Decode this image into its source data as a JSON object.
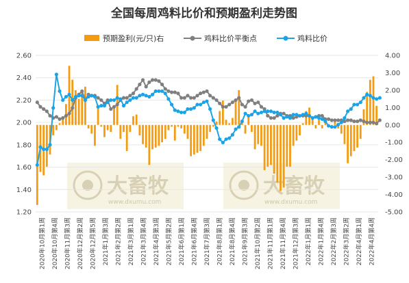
{
  "chart_data": {
    "type": "bar",
    "title": "全国每周鸡料比价和预期盈利走势图",
    "y_left": {
      "min": 1.2,
      "max": 2.6,
      "step": 0.2,
      "ticks": [
        "1.20",
        "1.40",
        "1.60",
        "1.80",
        "2.00",
        "2.20",
        "2.40",
        "2.60"
      ]
    },
    "y_right": {
      "min": -5,
      "max": 4,
      "step": 1,
      "ticks": [
        "-5.00",
        "-4.00",
        "-3.00",
        "-2.00",
        "-1.00",
        "0.00",
        "1.00",
        "2.00",
        "3.00",
        "4.00"
      ]
    },
    "x_tick_labels": [
      "2020年10月第1周",
      "2020年10月第4周",
      "2020年11月第3周",
      "2020年12月第2周",
      "2020年12月第5周",
      "2021年1月第3周",
      "2021年2月第2周",
      "2021年3月第1周",
      "2021年3月第4周",
      "2021年4月第3周",
      "2021年5月第2周",
      "2021年6月第1周",
      "2021年6月第4周",
      "2021年7月第3周",
      "2021年8月第1周",
      "2021年8月第4周",
      "2021年9月第3周",
      "2021年10月第2周",
      "2021年11月第1周",
      "2021年11月第4周",
      "2021年12月第3周",
      "2022年1月第1周",
      "2022年1月第4周",
      "2022年2月第3周",
      "2022年3月第2周",
      "2022年4月第1周",
      "2022年4月第4周"
    ],
    "legend_position": "top",
    "grid": true,
    "series": [
      {
        "name": "预期盈利(元/只)右",
        "type": "bar",
        "axis": "right",
        "color": "#f39c12",
        "values": [
          -4.6,
          -2.7,
          -2.9,
          -2.4,
          -1.7,
          -0.6,
          -0.3,
          0.1,
          0.5,
          1.2,
          3.4,
          2.6,
          2.0,
          1.5,
          2.0,
          2.2,
          -0.2,
          -0.5,
          -1.2,
          1.0,
          -0.1,
          -0.7,
          -0.3,
          -0.4,
          1.1,
          2.3,
          -0.8,
          -0.4,
          -1.5,
          -0.4,
          0.5,
          0.6,
          -0.6,
          -1.1,
          -1.3,
          -2.3,
          -1.4,
          -1.3,
          -1.2,
          -1.0,
          -0.8,
          -0.3,
          -0.1,
          -0.9,
          -0.1,
          -0.2,
          -0.5,
          -0.8,
          -1.8,
          -1.7,
          -1.6,
          -1.5,
          -1.2,
          -0.8,
          -0.4,
          -0.1,
          0.2,
          0.8,
          1.4,
          0.3,
          0.1,
          0.4,
          1.5,
          2.0,
          0.2,
          -0.5,
          0.5,
          -0.4,
          -1.4,
          -1.1,
          -1.2,
          -2.6,
          -2.4,
          -2.3,
          -2.8,
          -3.3,
          -3.8,
          -3.6,
          -2.4,
          -2.4,
          -1.2,
          -0.9,
          -0.6,
          0.1,
          0.8,
          1.0,
          0.5,
          -0.2,
          0.3,
          -0.2,
          0.2,
          0.0,
          -0.1,
          0.2,
          -0.2,
          -0.5,
          -1.1,
          -2.2,
          -1.8,
          -1.5,
          -1.3,
          -0.8,
          0.9,
          1.9,
          2.6,
          2.8,
          1.1
        ]
      },
      {
        "name": "鸡料比价平衡点",
        "type": "line",
        "axis": "left",
        "color": "#7f7f7f",
        "values": [
          2.18,
          2.14,
          2.12,
          2.1,
          2.06,
          2.04,
          2.05,
          2.03,
          2.04,
          2.06,
          2.08,
          2.13,
          2.22,
          2.25,
          2.28,
          2.2,
          2.25,
          2.24,
          2.24,
          2.22,
          2.2,
          2.17,
          2.2,
          2.12,
          2.14,
          2.16,
          2.2,
          2.22,
          2.22,
          2.24,
          2.26,
          2.3,
          2.34,
          2.38,
          2.32,
          2.36,
          2.38,
          2.38,
          2.37,
          2.34,
          2.3,
          2.28,
          2.27,
          2.27,
          2.26,
          2.22,
          2.22,
          2.24,
          2.22,
          2.22,
          2.24,
          2.26,
          2.27,
          2.28,
          2.24,
          2.22,
          2.2,
          2.17,
          2.14,
          2.14,
          2.16,
          2.18,
          2.2,
          2.22,
          2.16,
          2.14,
          2.19,
          2.2,
          2.17,
          2.18,
          2.14,
          2.12,
          2.06,
          2.04,
          2.04,
          2.06,
          2.08,
          2.08,
          2.06,
          2.06,
          2.04,
          2.05,
          2.06,
          2.06,
          2.06,
          2.06,
          2.04,
          2.05,
          2.06,
          2.06,
          2.03,
          2.03,
          2.02,
          2.02,
          2.02,
          2.02,
          2.01,
          2.02,
          2.02,
          2.01,
          2.01,
          2.02,
          2.01,
          2.0,
          2.0,
          2.0,
          1.99,
          2.02
        ]
      },
      {
        "name": "鸡料比价",
        "type": "line",
        "axis": "left",
        "color": "#1aa3e6",
        "values": [
          1.62,
          1.78,
          1.76,
          1.76,
          1.8,
          2.13,
          2.43,
          2.28,
          2.2,
          2.23,
          2.25,
          2.2,
          2.23,
          2.24,
          2.24,
          2.2,
          2.23,
          2.24,
          2.23,
          2.14,
          2.15,
          2.15,
          2.18,
          2.2,
          2.2,
          2.22,
          2.21,
          2.15,
          2.18,
          2.2,
          2.22,
          2.22,
          2.24,
          2.25,
          2.24,
          2.23,
          2.25,
          2.28,
          2.28,
          2.28,
          2.26,
          2.21,
          2.16,
          2.11,
          2.1,
          2.09,
          2.09,
          2.12,
          2.12,
          2.13,
          2.16,
          2.16,
          2.18,
          2.19,
          2.12,
          2.02,
          1.95,
          1.85,
          1.82,
          1.85,
          1.86,
          1.89,
          1.94,
          1.96,
          2.01,
          2.08,
          2.06,
          2.07,
          2.1,
          2.08,
          2.09,
          2.1,
          2.1,
          2.1,
          2.09,
          2.09,
          2.07,
          2.04,
          2.05,
          2.04,
          2.07,
          2.07,
          2.06,
          2.07,
          2.08,
          2.06,
          2.04,
          2.05,
          2.04,
          2.03,
          2.01,
          1.97,
          1.96,
          1.96,
          1.98,
          2.0,
          2.04,
          2.1,
          2.12,
          2.16,
          2.16,
          2.18,
          2.22,
          2.25,
          2.24,
          2.22,
          2.21,
          2.22
        ]
      }
    ]
  },
  "watermark": {
    "brand": "大畜牧",
    "url": "www.dxumu.com"
  }
}
